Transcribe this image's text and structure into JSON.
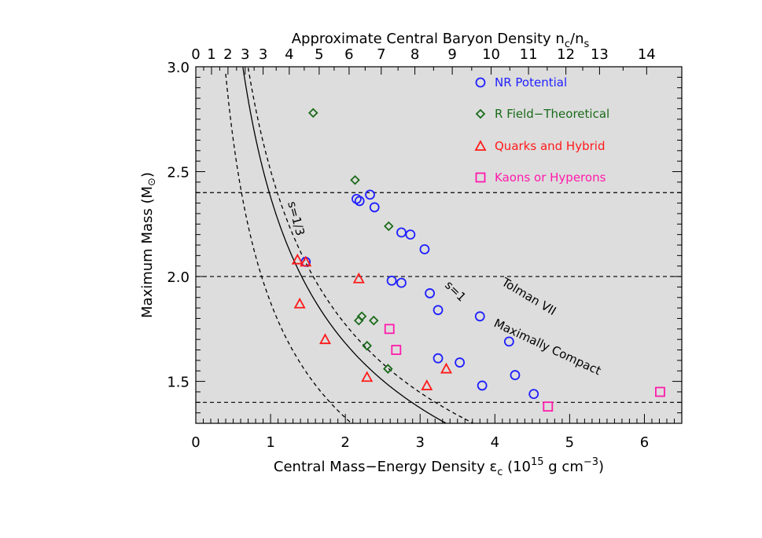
{
  "chart_data": {
    "type": "scatter",
    "title": "",
    "xlabel": "Central Mass−Energy Density ε",
    "xlabel_sub": "c",
    "xlabel_units_pre": " (10",
    "xlabel_units_sup": "15",
    "xlabel_units_mid": " g cm",
    "xlabel_units_sup2": "−3",
    "xlabel_units_post": ")",
    "ylabel": "Maximum Mass (M",
    "ylabel_sun": "⊙",
    "ylabel_post": ")",
    "top_xlabel_pre": "Approximate Central Baryon Density n",
    "top_xlabel_sub1": "c",
    "top_xlabel_mid": "/n",
    "top_xlabel_sub2": "s",
    "xlim": [
      0,
      6.5
    ],
    "ylim": [
      1.3,
      3.0
    ],
    "x_ticks": [
      0,
      1,
      2,
      3,
      4,
      5,
      6
    ],
    "y_ticks": [
      1.5,
      2.0,
      2.5,
      3.0
    ],
    "y_tick_labels": [
      "1.5",
      "2.0",
      "2.5",
      "3.0"
    ],
    "top_ticks": [
      {
        "label": "0",
        "x": 0.0
      },
      {
        "label": "1",
        "x": 0.21
      },
      {
        "label": "2",
        "x": 0.43
      },
      {
        "label": "3",
        "x": 0.66
      },
      {
        "label": "3",
        "x": 0.9
      },
      {
        "label": "4",
        "x": 1.25
      },
      {
        "label": "5",
        "x": 1.65
      },
      {
        "label": "6",
        "x": 2.05
      },
      {
        "label": "7",
        "x": 2.48
      },
      {
        "label": "8",
        "x": 2.93
      },
      {
        "label": "9",
        "x": 3.43
      },
      {
        "label": "10",
        "x": 3.95
      },
      {
        "label": "11",
        "x": 4.45
      },
      {
        "label": "12",
        "x": 4.95
      },
      {
        "label": "13",
        "x": 5.4
      },
      {
        "label": "14",
        "x": 6.03
      }
    ],
    "hlines": [
      1.4,
      2.0,
      2.4
    ],
    "background": "#dddddd",
    "legend_position": "top-right",
    "series": [
      {
        "name": "NR Potential",
        "marker": "circle",
        "color": "#1f1fff",
        "points": [
          [
            1.47,
            2.07
          ],
          [
            2.15,
            2.37
          ],
          [
            2.19,
            2.36
          ],
          [
            2.33,
            2.39
          ],
          [
            2.39,
            2.33
          ],
          [
            2.75,
            2.21
          ],
          [
            2.87,
            2.2
          ],
          [
            3.06,
            2.13
          ],
          [
            2.62,
            1.98
          ],
          [
            2.75,
            1.97
          ],
          [
            3.13,
            1.92
          ],
          [
            3.24,
            1.84
          ],
          [
            3.8,
            1.81
          ],
          [
            4.19,
            1.69
          ],
          [
            3.24,
            1.61
          ],
          [
            3.53,
            1.59
          ],
          [
            3.83,
            1.48
          ],
          [
            4.27,
            1.53
          ],
          [
            4.52,
            1.44
          ]
        ]
      },
      {
        "name": "R Field−Theoretical",
        "marker": "diamond",
        "color": "#1a6b1a",
        "points": [
          [
            1.57,
            2.78
          ],
          [
            2.13,
            2.46
          ],
          [
            2.58,
            2.24
          ],
          [
            2.22,
            1.81
          ],
          [
            2.18,
            1.79
          ],
          [
            2.38,
            1.79
          ],
          [
            2.29,
            1.67
          ],
          [
            2.57,
            1.56
          ]
        ]
      },
      {
        "name": "Quarks and Hybrid",
        "marker": "triangle",
        "color": "#ff1a1a",
        "points": [
          [
            1.36,
            2.08
          ],
          [
            1.47,
            2.07
          ],
          [
            2.18,
            1.99
          ],
          [
            1.39,
            1.87
          ],
          [
            1.73,
            1.7
          ],
          [
            2.29,
            1.52
          ],
          [
            3.35,
            1.56
          ],
          [
            3.09,
            1.48
          ]
        ]
      },
      {
        "name": "Kaons or Hyperons",
        "marker": "square",
        "color": "#ff1aaa",
        "points": [
          [
            2.59,
            1.75
          ],
          [
            2.68,
            1.65
          ],
          [
            4.71,
            1.38
          ],
          [
            6.21,
            1.45
          ]
        ]
      }
    ],
    "curves": [
      {
        "label": "s=1/3",
        "style": "dashed",
        "k": 3.52
      },
      {
        "label": "s=1",
        "style": "solid",
        "k": 5.66
      },
      {
        "label": "Tolman VII",
        "style": "dashed",
        "k": 6.28
      }
    ],
    "curve_label_extra": "Maximally Compact"
  }
}
